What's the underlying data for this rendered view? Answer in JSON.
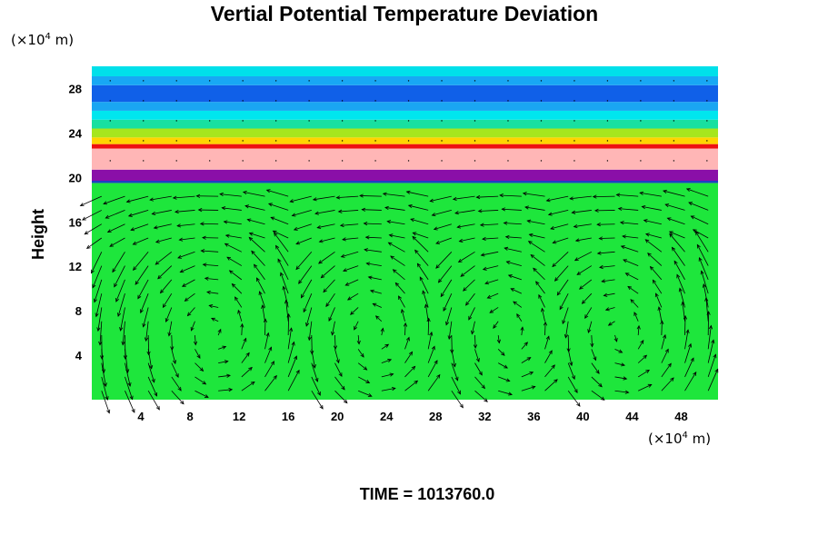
{
  "chart_data": {
    "type": "heatmap",
    "title": "Vertial Potential Temperature Deviation",
    "ylabel": "Height",
    "xlabel": "",
    "y_unit": {
      "prefix": "(×10",
      "exponent": "4",
      "suffix": " m)"
    },
    "x_unit": {
      "prefix": "(×10",
      "exponent": "4",
      "suffix": " m)"
    },
    "xlim": [
      0,
      51
    ],
    "ylim": [
      0,
      30
    ],
    "xticks": [
      4,
      8,
      12,
      16,
      20,
      24,
      28,
      32,
      36,
      40,
      44,
      48
    ],
    "yticks": [
      4,
      8,
      12,
      16,
      20,
      24,
      28
    ],
    "overlay": "velocity vectors",
    "layers": [
      {
        "from": 0,
        "to": 19.5,
        "color": "#1ee63c"
      },
      {
        "from": 19.5,
        "to": 20.5,
        "color": "#1f3fc2"
      },
      {
        "from": 19.7,
        "to": 20.7,
        "color": "#8a0fa8"
      },
      {
        "from": 20.7,
        "to": 22.6,
        "color": "#ffb6b6"
      },
      {
        "from": 22.6,
        "to": 23.0,
        "color": "#ee1111"
      },
      {
        "from": 23.0,
        "to": 23.6,
        "color": "#ffd400"
      },
      {
        "from": 23.6,
        "to": 24.4,
        "color": "#a6e61e"
      },
      {
        "from": 24.4,
        "to": 25.2,
        "color": "#18e0a0"
      },
      {
        "from": 25.2,
        "to": 26.0,
        "color": "#00e6ee"
      },
      {
        "from": 26.0,
        "to": 26.8,
        "color": "#1aa6f2"
      },
      {
        "from": 26.8,
        "to": 28.3,
        "color": "#1060e8"
      },
      {
        "from": 28.3,
        "to": 29.1,
        "color": "#18a8f4"
      },
      {
        "from": 29.1,
        "to": 30.0,
        "color": "#00e0ea"
      }
    ],
    "vortex_centers_x": [
      10,
      23,
      34,
      43
    ]
  },
  "footer": {
    "label": "TIME = 1013760.0"
  }
}
